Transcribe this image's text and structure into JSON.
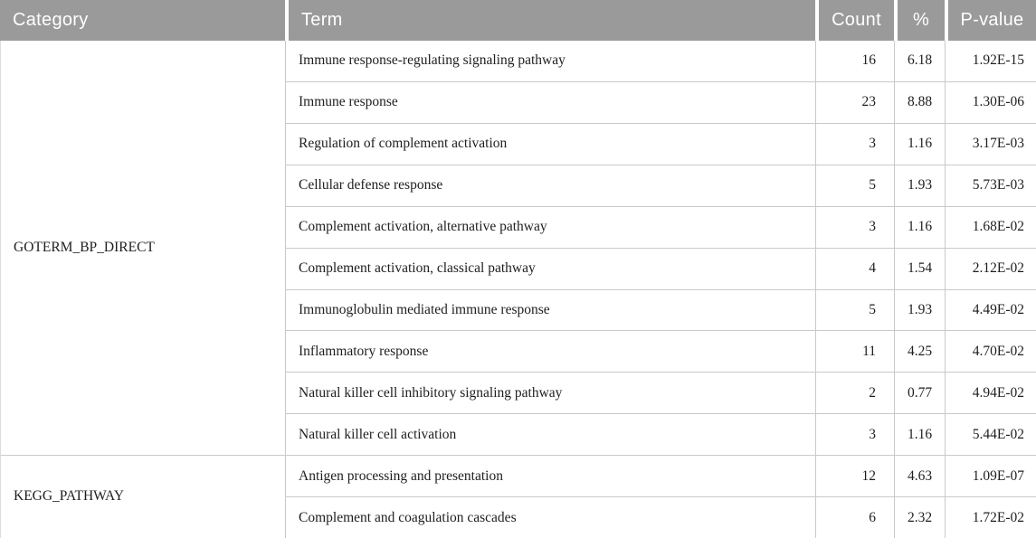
{
  "table": {
    "columns": [
      {
        "id": "category",
        "label": "Category"
      },
      {
        "id": "term",
        "label": "Term"
      },
      {
        "id": "count",
        "label": "Count"
      },
      {
        "id": "percent",
        "label": "%"
      },
      {
        "id": "p_value",
        "label": "P-value"
      }
    ],
    "groups": [
      {
        "category": "GOTERM_BP_DIRECT",
        "rows": [
          {
            "term": "Immune response-regulating signaling pathway",
            "count": "16",
            "percent": "6.18",
            "p_value": "1.92E-15"
          },
          {
            "term": "Immune response",
            "count": "23",
            "percent": "8.88",
            "p_value": "1.30E-06"
          },
          {
            "term": "Regulation of complement activation",
            "count": "3",
            "percent": "1.16",
            "p_value": "3.17E-03"
          },
          {
            "term": "Cellular defense response",
            "count": "5",
            "percent": "1.93",
            "p_value": "5.73E-03"
          },
          {
            "term": "Complement activation, alternative pathway",
            "count": "3",
            "percent": "1.16",
            "p_value": "1.68E-02"
          },
          {
            "term": "Complement activation, classical pathway",
            "count": "4",
            "percent": "1.54",
            "p_value": "2.12E-02"
          },
          {
            "term": "Immunoglobulin mediated immune response",
            "count": "5",
            "percent": "1.93",
            "p_value": "4.49E-02"
          },
          {
            "term": "Inflammatory response",
            "count": "11",
            "percent": "4.25",
            "p_value": "4.70E-02"
          },
          {
            "term": "Natural killer cell inhibitory signaling pathway",
            "count": "2",
            "percent": "0.77",
            "p_value": "4.94E-02"
          },
          {
            "term": "Natural killer cell activation",
            "count": "3",
            "percent": "1.16",
            "p_value": "5.44E-02"
          }
        ]
      },
      {
        "category": "KEGG_PATHWAY",
        "rows": [
          {
            "term": "Antigen processing and presentation",
            "count": "12",
            "percent": "4.63",
            "p_value": "1.09E-07"
          },
          {
            "term": "Complement and coagulation cascades",
            "count": "6",
            "percent": "2.32",
            "p_value": "1.72E-02"
          }
        ]
      }
    ]
  },
  "colors": {
    "header_bg": "#9a9a9a",
    "header_text": "#ffffff",
    "body_text": "#1e1e1e",
    "border": "#c9c9c9",
    "row_bg": "#ffffff"
  }
}
